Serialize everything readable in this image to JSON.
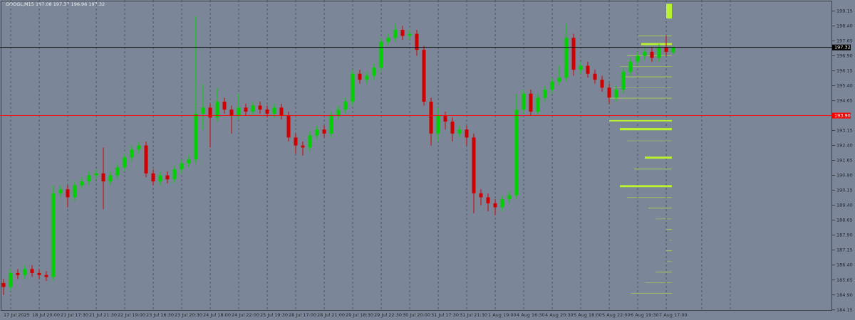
{
  "chart_data": {
    "type": "candlestick",
    "title": "GOOGL,M15  197.08 197.37 196.96 197.32",
    "categories": [
      null,
      "17 Jul 2025",
      null,
      null,
      null,
      "18 Jul 20:00",
      null,
      null,
      null,
      "21 Jul 17:30",
      null,
      null,
      null,
      "21 Jul 21:30",
      null,
      null,
      null,
      "22 Jul 19:00",
      null,
      null,
      null,
      "23 Jul 16:30",
      null,
      null,
      null,
      "23 Jul 20:30",
      null,
      null,
      null,
      "24 Jul 18:00",
      null,
      null,
      null,
      "24 Jul 22:00",
      null,
      null,
      null,
      "25 Jul 19:30",
      null,
      null,
      null,
      "28 Jul 17:00",
      null,
      null,
      null,
      "28 Jul 21:00",
      null,
      null,
      null,
      "29 Jul 18:30",
      null,
      null,
      null,
      "29 Jul 22:30",
      null,
      null,
      null,
      "30 Jul 20:00",
      null,
      null,
      null,
      "31 Jul 17:30",
      null,
      null,
      null,
      "31 Jul 21:30",
      null,
      null,
      null,
      "1 Aug 19:00",
      null,
      null,
      null,
      "4 Aug 16:30",
      null,
      null,
      null,
      "4 Aug 20:30",
      null,
      null,
      null,
      "5 Aug 18:00",
      null,
      null,
      null,
      "5 Aug 22:00",
      null,
      null,
      null,
      "6 Aug 19:30",
      null,
      null,
      null,
      "7 Aug 17:00",
      null
    ],
    "open": [
      185.5,
      185.3,
      186.0,
      185.9,
      186.2,
      186.0,
      185.9,
      185.8,
      190.0,
      190.2,
      189.8,
      190.4,
      190.6,
      190.9,
      191.0,
      190.6,
      190.9,
      191.3,
      191.8,
      192.2,
      192.4,
      191.0,
      190.6,
      190.9,
      190.7,
      191.2,
      191.5,
      191.7,
      194.0,
      194.3,
      193.8,
      194.6,
      194.2,
      193.9,
      194.3,
      194.1,
      194.4,
      194.2,
      194.0,
      194.3,
      193.9,
      192.8,
      192.4,
      192.3,
      192.9,
      193.2,
      193.0,
      193.9,
      194.2,
      194.6,
      196.0,
      195.7,
      195.9,
      196.3,
      197.6,
      197.8,
      198.2,
      197.9,
      198.0,
      197.2,
      194.6,
      193.0,
      193.9,
      193.6,
      193.0,
      193.2,
      192.8,
      190.0,
      189.8,
      189.5,
      189.3,
      189.7,
      189.9,
      194.2,
      195.0,
      194.1,
      194.8,
      195.2,
      195.6,
      195.8,
      197.8,
      196.2,
      196.4,
      196.0,
      195.7,
      195.3,
      194.8,
      195.2,
      196.1,
      196.6,
      196.9,
      197.1,
      196.8,
      197.3,
      197.08
    ],
    "high": [
      185.7,
      186.2,
      186.2,
      186.4,
      186.4,
      186.2,
      186.1,
      190.4,
      190.4,
      190.4,
      190.6,
      190.8,
      191.1,
      191.2,
      192.3,
      191.1,
      191.5,
      192.0,
      192.4,
      192.6,
      192.6,
      191.2,
      191.1,
      191.1,
      191.4,
      191.7,
      191.9,
      198.9,
      195.5,
      194.5,
      195.3,
      194.8,
      194.4,
      195.0,
      194.5,
      194.6,
      194.6,
      194.4,
      194.5,
      194.5,
      194.1,
      193.0,
      192.6,
      193.1,
      193.4,
      193.4,
      194.1,
      194.4,
      194.8,
      196.2,
      196.2,
      196.1,
      196.5,
      197.8,
      198.0,
      198.5,
      198.4,
      198.2,
      198.2,
      197.4,
      194.8,
      194.3,
      194.1,
      193.8,
      193.4,
      193.4,
      193.0,
      190.2,
      190.0,
      189.7,
      189.9,
      190.1,
      195.0,
      195.2,
      195.2,
      195.0,
      195.4,
      195.8,
      196.4,
      198.5,
      198.0,
      196.6,
      196.6,
      196.2,
      195.9,
      195.5,
      195.4,
      196.3,
      196.8,
      197.1,
      197.3,
      197.3,
      197.5,
      197.9,
      197.37
    ],
    "low": [
      184.9,
      185.1,
      185.7,
      185.7,
      185.8,
      185.7,
      185.6,
      185.6,
      189.8,
      189.3,
      189.6,
      190.2,
      190.4,
      190.7,
      189.2,
      190.4,
      190.7,
      191.1,
      191.6,
      192.0,
      190.8,
      190.4,
      190.4,
      190.5,
      190.5,
      191.0,
      191.3,
      191.5,
      193.2,
      192.3,
      193.6,
      194.0,
      193.0,
      193.7,
      193.9,
      193.9,
      194.0,
      193.8,
      193.8,
      193.7,
      192.6,
      192.0,
      191.9,
      192.1,
      192.7,
      192.8,
      192.8,
      193.7,
      194.0,
      194.4,
      195.5,
      195.5,
      195.7,
      196.1,
      197.4,
      197.6,
      197.7,
      197.7,
      196.9,
      194.4,
      192.4,
      192.6,
      193.2,
      192.6,
      192.8,
      192.4,
      189.0,
      189.4,
      189.1,
      188.9,
      189.1,
      189.5,
      189.7,
      194.0,
      193.9,
      193.9,
      194.6,
      195.0,
      195.4,
      195.6,
      195.9,
      196.0,
      195.8,
      195.5,
      195.1,
      194.5,
      194.6,
      195.0,
      195.9,
      196.4,
      196.7,
      196.6,
      196.6,
      196.9,
      196.96
    ],
    "close": [
      185.3,
      186.0,
      185.9,
      186.2,
      186.0,
      185.9,
      185.8,
      190.0,
      190.2,
      189.8,
      190.4,
      190.6,
      190.9,
      191.0,
      190.6,
      190.9,
      191.3,
      191.8,
      192.2,
      192.4,
      191.0,
      190.6,
      190.9,
      190.7,
      191.2,
      191.5,
      191.7,
      194.0,
      194.3,
      193.8,
      194.6,
      194.2,
      193.9,
      194.3,
      194.1,
      194.4,
      194.2,
      194.0,
      194.3,
      193.9,
      192.8,
      192.4,
      192.3,
      192.9,
      193.2,
      193.0,
      193.9,
      194.2,
      194.6,
      196.0,
      195.7,
      195.9,
      196.3,
      197.6,
      197.8,
      198.2,
      197.9,
      198.0,
      197.2,
      194.6,
      193.0,
      193.9,
      193.6,
      193.0,
      193.2,
      192.8,
      190.0,
      189.8,
      189.5,
      189.3,
      189.7,
      189.9,
      194.2,
      195.0,
      194.1,
      194.8,
      195.2,
      195.6,
      195.8,
      197.8,
      196.2,
      196.4,
      196.0,
      195.7,
      195.3,
      194.8,
      195.2,
      196.1,
      196.6,
      196.9,
      197.1,
      196.8,
      197.3,
      197.1,
      197.32
    ],
    "up_color": "#00d000",
    "down_color": "#d00000",
    "ylim": [
      184.0,
      199.7
    ],
    "yticks": [
      199.15,
      {
        "value": 198.4,
        "label": "198.40"
      },
      197.65,
      {
        "value": 196.9,
        "label": "196.90"
      },
      196.15,
      {
        "value": 195.4,
        "label": "195.40"
      },
      194.65,
      193.15,
      {
        "value": 192.4,
        "label": "192.40"
      },
      191.65,
      {
        "value": 190.9,
        "label": "190.90"
      },
      190.15,
      {
        "value": 189.4,
        "label": "189.40"
      },
      188.65,
      {
        "value": 187.9,
        "label": "187.90"
      },
      187.15,
      {
        "value": 186.4,
        "label": "186.40"
      },
      185.65,
      {
        "value": 184.9,
        "label": "184.90"
      },
      184.15
    ],
    "grid": true,
    "lines": [
      {
        "value": 197.32,
        "label": "197.32",
        "color": "#000000"
      },
      {
        "value": 193.9,
        "label": "193.90",
        "color": "#ff0000"
      }
    ],
    "profile": {
      "color": "#b8f230",
      "levels": [
        199.15,
        198.43,
        198.08,
        197.72,
        197.19,
        196.65,
        196.12,
        195.58,
        195.05,
        194.51,
        194.05,
        193.8,
        193.45,
        192.91,
        192.38,
        192.02,
        191.49,
        190.95,
        190.59,
        190.06,
        189.53,
        188.99,
        188.46,
        187.92,
        187.39,
        186.85,
        186.32,
        185.78,
        185.25,
        184.72,
        184.36
      ],
      "volumes": [
        8,
        28,
        48,
        43,
        63,
        73,
        68,
        83,
        88,
        93,
        108,
        88,
        73,
        63,
        48,
        38,
        53,
        63,
        73,
        63,
        33,
        23,
        8,
        3,
        8,
        8,
        23,
        38,
        58,
        63,
        63
      ]
    }
  }
}
